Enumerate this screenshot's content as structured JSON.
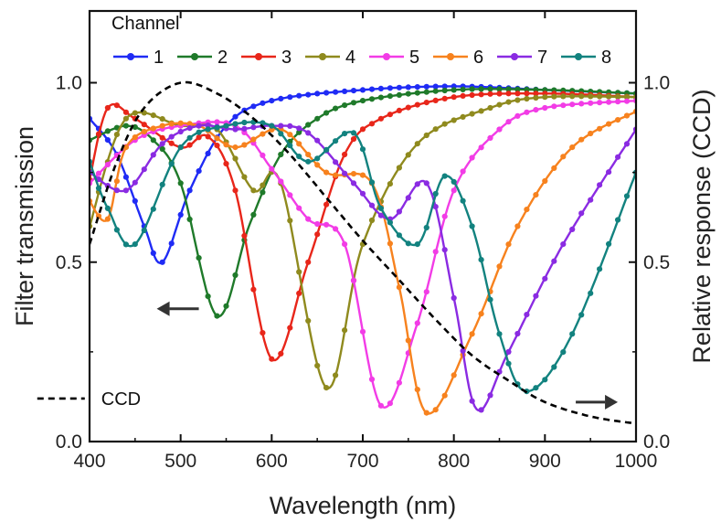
{
  "chart_data": {
    "type": "line",
    "xlabel": "Wavelength (nm)",
    "ylabel": "Filter transmission",
    "y2label": "Relative response (CCD)",
    "xlim": [
      400,
      1000
    ],
    "ylim": [
      0,
      1.2
    ],
    "y2lim": [
      0,
      1.2
    ],
    "x_ticks": [
      "400",
      "500",
      "600",
      "700",
      "800",
      "900",
      "1000"
    ],
    "y_ticks": [
      "0.0",
      "0.5",
      "1.0"
    ],
    "y2_ticks": [
      "0.0",
      "0.5",
      "1.0"
    ],
    "grid": false,
    "legend": {
      "title": "Channel",
      "placement": "top"
    },
    "series": [
      {
        "name": "1",
        "color": "#1f2bf5",
        "x": [
          400,
          430,
          460,
          480,
          510,
          550,
          600,
          700,
          800,
          900,
          1000
        ],
        "y": [
          0.9,
          0.8,
          0.6,
          0.5,
          0.7,
          0.88,
          0.95,
          0.98,
          0.99,
          0.98,
          0.97
        ]
      },
      {
        "name": "2",
        "color": "#1f7a2a",
        "x": [
          400,
          440,
          470,
          500,
          540,
          575,
          610,
          650,
          700,
          800,
          900,
          1000
        ],
        "y": [
          0.84,
          0.88,
          0.84,
          0.72,
          0.35,
          0.6,
          0.8,
          0.9,
          0.95,
          0.98,
          0.98,
          0.97
        ]
      },
      {
        "name": "3",
        "color": "#e8261a",
        "x": [
          400,
          420,
          450,
          500,
          530,
          560,
          600,
          640,
          680,
          720,
          800,
          900,
          1000
        ],
        "y": [
          0.73,
          0.93,
          0.9,
          0.82,
          0.85,
          0.7,
          0.23,
          0.5,
          0.8,
          0.9,
          0.96,
          0.97,
          0.96
        ]
      },
      {
        "name": "4",
        "color": "#8f8a1e",
        "x": [
          400,
          440,
          500,
          540,
          580,
          610,
          660,
          700,
          760,
          840,
          900,
          1000
        ],
        "y": [
          0.6,
          0.9,
          0.88,
          0.87,
          0.7,
          0.72,
          0.15,
          0.55,
          0.83,
          0.93,
          0.96,
          0.96
        ]
      },
      {
        "name": "5",
        "color": "#f23ce6",
        "x": [
          400,
          450,
          500,
          560,
          600,
          640,
          680,
          720,
          760,
          800,
          850,
          900,
          1000
        ],
        "y": [
          0.72,
          0.84,
          0.88,
          0.88,
          0.76,
          0.62,
          0.55,
          0.1,
          0.33,
          0.7,
          0.87,
          0.93,
          0.95
        ]
      },
      {
        "name": "6",
        "color": "#f7821e",
        "x": [
          400,
          420,
          440,
          480,
          520,
          560,
          610,
          660,
          710,
          740,
          770,
          820,
          870,
          930,
          1000
        ],
        "y": [
          0.67,
          0.62,
          0.82,
          0.88,
          0.88,
          0.82,
          0.87,
          0.75,
          0.72,
          0.43,
          0.08,
          0.3,
          0.6,
          0.82,
          0.92
        ]
      },
      {
        "name": "7",
        "color": "#8a2be2",
        "x": [
          400,
          440,
          480,
          520,
          560,
          600,
          640,
          690,
          730,
          770,
          800,
          825,
          860,
          920,
          1000
        ],
        "y": [
          0.75,
          0.7,
          0.83,
          0.88,
          0.87,
          0.88,
          0.86,
          0.72,
          0.62,
          0.72,
          0.4,
          0.09,
          0.25,
          0.55,
          0.87
        ]
      },
      {
        "name": "8",
        "color": "#12827f",
        "x": [
          400,
          420,
          450,
          500,
          550,
          600,
          640,
          690,
          720,
          760,
          790,
          820,
          850,
          880,
          930,
          1000
        ],
        "y": [
          0.78,
          0.65,
          0.55,
          0.82,
          0.88,
          0.88,
          0.78,
          0.86,
          0.65,
          0.55,
          0.74,
          0.6,
          0.3,
          0.14,
          0.3,
          0.75
        ]
      },
      {
        "name": "CCD",
        "color": "#000000",
        "dashed": true,
        "markers": false,
        "x": [
          400,
          430,
          460,
          500,
          540,
          580,
          620,
          660,
          700,
          740,
          780,
          820,
          860,
          900,
          950,
          1000
        ],
        "y": [
          0.55,
          0.78,
          0.93,
          1.0,
          0.97,
          0.9,
          0.8,
          0.68,
          0.56,
          0.45,
          0.34,
          0.24,
          0.17,
          0.11,
          0.07,
          0.05
        ]
      }
    ],
    "annotations": [
      {
        "label": "arrow-left",
        "points_to": "left axis",
        "x": 530,
        "y": 0.37
      },
      {
        "label": "arrow-right",
        "points_to": "right axis",
        "x": 980,
        "y": 0.11
      },
      {
        "label": "CCD",
        "x": 465,
        "y": 0.12
      }
    ]
  }
}
